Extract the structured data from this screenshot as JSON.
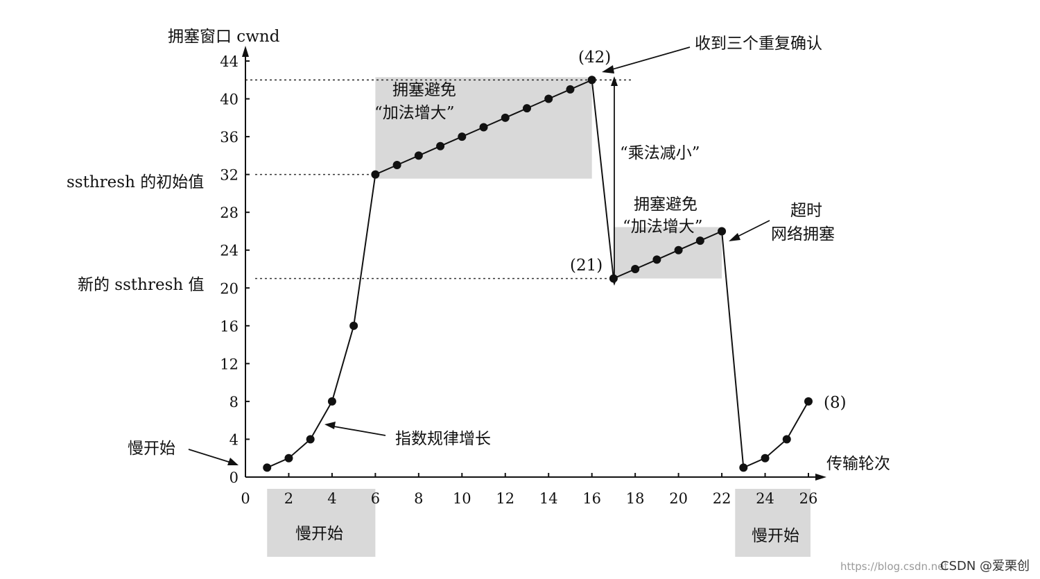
{
  "chart_data": {
    "type": "line",
    "ylabel": "拥塞窗口 cwnd",
    "xlabel": "传输轮次",
    "xlim": [
      0,
      26
    ],
    "ylim": [
      0,
      44
    ],
    "x_ticks": [
      0,
      2,
      4,
      6,
      8,
      10,
      12,
      14,
      16,
      18,
      20,
      22,
      24,
      26
    ],
    "y_ticks": [
      0,
      4,
      8,
      12,
      16,
      20,
      24,
      28,
      32,
      36,
      40,
      44
    ],
    "series": [
      {
        "x": [
          1,
          2,
          3,
          4,
          5,
          6,
          7,
          8,
          9,
          10,
          11,
          12,
          13,
          14,
          15,
          16,
          17,
          18,
          19,
          20,
          21,
          22,
          23,
          24,
          25,
          26
        ],
        "y": [
          1,
          2,
          4,
          8,
          16,
          32,
          33,
          34,
          35,
          36,
          37,
          38,
          39,
          40,
          41,
          42,
          21,
          22,
          23,
          24,
          25,
          26,
          1,
          2,
          4,
          8
        ]
      }
    ],
    "thresholds": [
      {
        "y": 42,
        "label": ""
      },
      {
        "y": 32,
        "label": "ssthresh 的初始值"
      },
      {
        "y": 21,
        "label": "新的 ssthresh 值"
      }
    ],
    "regions": [
      {
        "x_from": 1,
        "x_to": 6,
        "label": "慢开始"
      },
      {
        "x_from": 6,
        "x_to": 16,
        "label_lines": [
          "拥塞避免",
          "“加法增大”"
        ]
      },
      {
        "x_from": 17,
        "x_to": 22,
        "label_lines": [
          "拥塞避免",
          "“加法增大”"
        ]
      },
      {
        "x_from": 23,
        "x_to": 26,
        "label": "慢开始"
      }
    ],
    "annotations": {
      "peak_value": "(42)",
      "drop_value": "(21)",
      "end_value": "(8)",
      "triple_ack": "收到三个重复确认",
      "multiplicative_decrease": "“乘法减小”",
      "timeout_lines": [
        "超时",
        "网络拥塞"
      ],
      "exponential_growth": "指数规律增长",
      "slow_start_left": "慢开始"
    }
  },
  "watermark": {
    "url": "https://blog.csdn.net",
    "brand": "CSDN @爱栗创"
  }
}
